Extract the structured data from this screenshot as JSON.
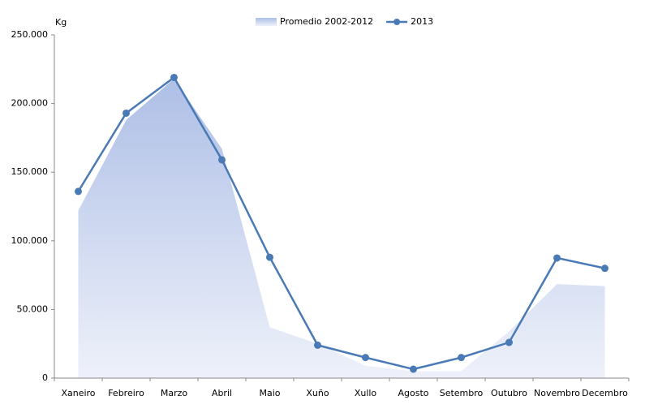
{
  "chart_data": {
    "type": "area-line",
    "y_label": "Kg",
    "categories": [
      "Xaneiro",
      "Febreiro",
      "Marzo",
      "Abril",
      "Maio",
      "Xuño",
      "Xullo",
      "Agosto",
      "Setembro",
      "Outubro",
      "Novembro",
      "Decembro"
    ],
    "series": [
      {
        "name": "Promedio 2002-2012",
        "type": "area",
        "color": "#aebfe6",
        "values": [
          122000,
          188000,
          218000,
          167000,
          37000,
          25000,
          9000,
          5000,
          5000,
          34000,
          68500,
          67000
        ]
      },
      {
        "name": "2013",
        "type": "line",
        "color": "#4a7ab5",
        "values": [
          136000,
          193000,
          219000,
          159000,
          88000,
          24000,
          15000,
          6500,
          15000,
          26000,
          87500,
          80000
        ]
      }
    ],
    "ylim": [
      0,
      250000
    ],
    "yticks": [
      0,
      {
        "value": 50000,
        "label": "50.000"
      },
      {
        "value": 100000,
        "label": "100.000"
      },
      {
        "value": 150000,
        "label": "150.000"
      },
      {
        "value": 200000,
        "label": "200.000"
      },
      {
        "value": 250000,
        "label": "250.000"
      }
    ],
    "legend": "top"
  }
}
